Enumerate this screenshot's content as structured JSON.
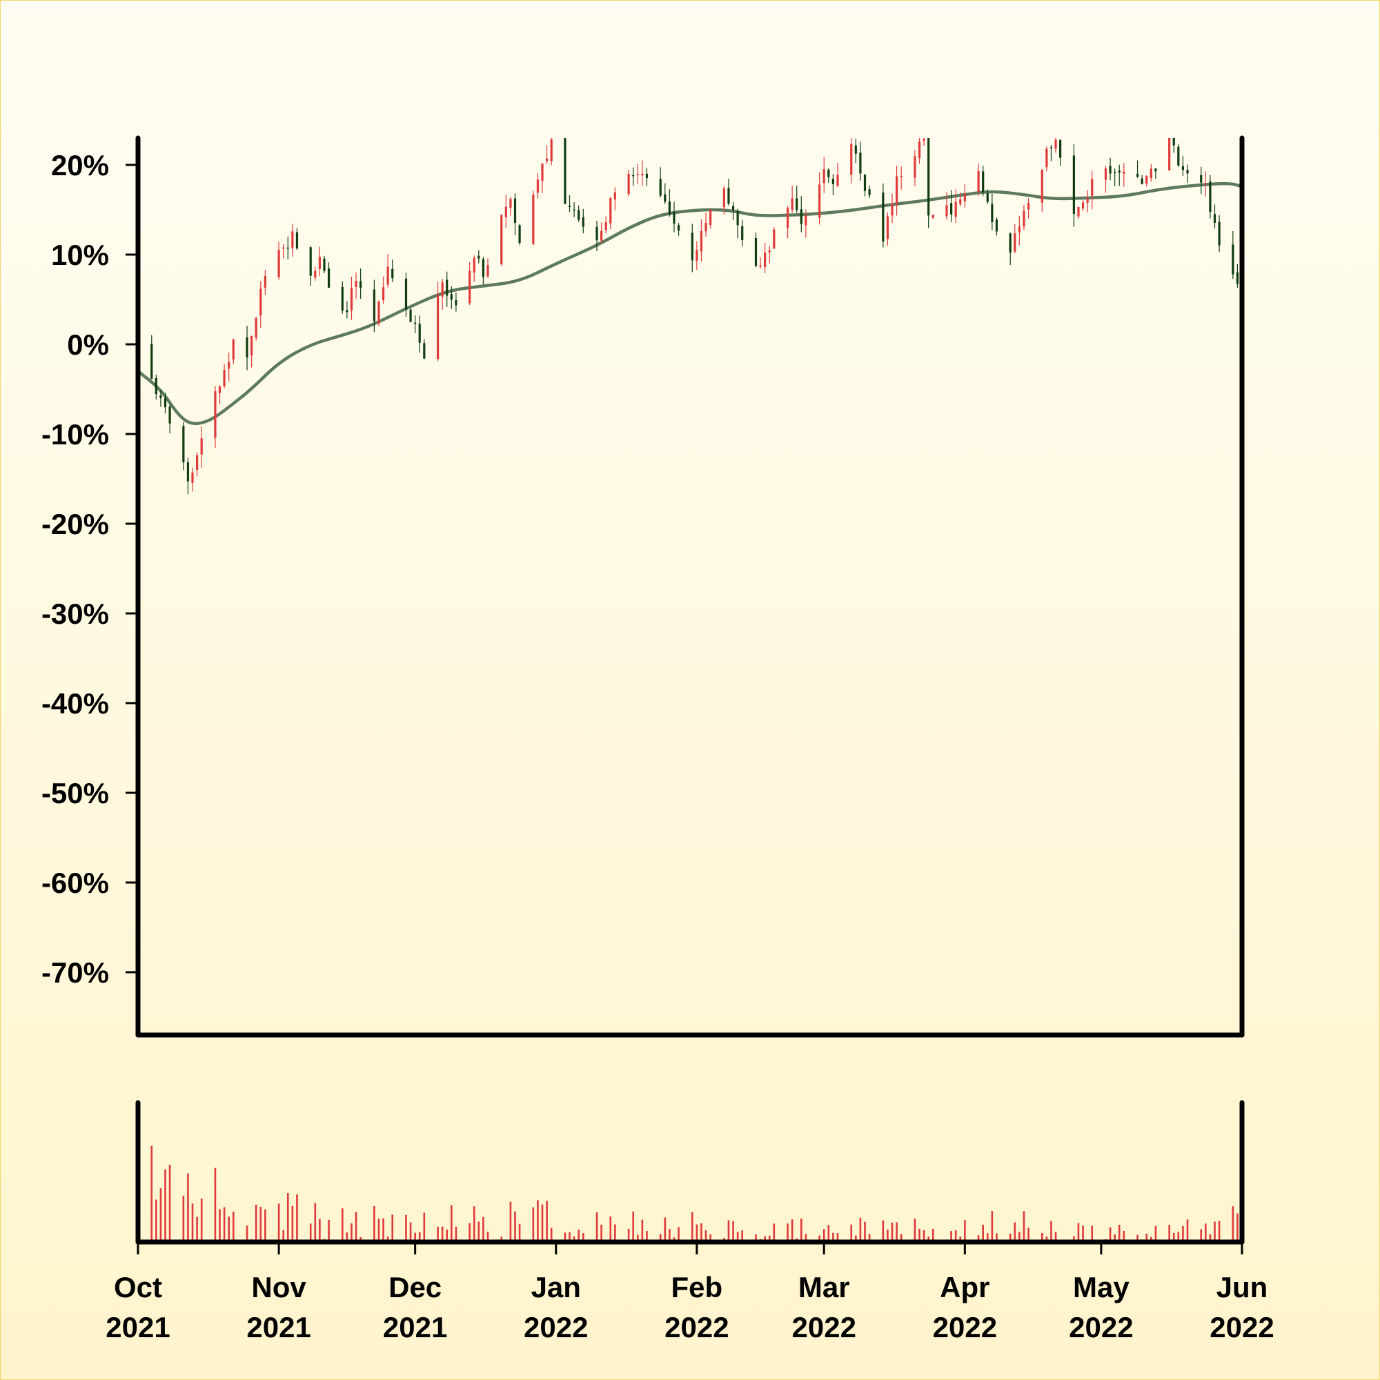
{
  "chart_data": [
    {
      "type": "candlestick",
      "title": "",
      "xlabel": "",
      "ylabel": "",
      "y_unit": "%",
      "ylim": [
        -77,
        23
      ],
      "yticks": [
        {
          "value": 20,
          "label": "20%"
        },
        {
          "value": 10,
          "label": "10%"
        },
        {
          "value": 0,
          "label": "0%"
        },
        {
          "value": -10,
          "label": "-10%"
        },
        {
          "value": -20,
          "label": "-20%"
        },
        {
          "value": -30,
          "label": "-30%"
        },
        {
          "value": -40,
          "label": "-40%"
        },
        {
          "value": -50,
          "label": "-50%"
        },
        {
          "value": -60,
          "label": "-60%"
        },
        {
          "value": -70,
          "label": "-70%"
        }
      ],
      "x_range": [
        "2021-10-01",
        "2022-06-01"
      ],
      "xticks": [
        {
          "date": "2021-10-01",
          "month": "Oct",
          "year": "2021"
        },
        {
          "date": "2021-11-01",
          "month": "Nov",
          "year": "2021"
        },
        {
          "date": "2021-12-01",
          "month": "Dec",
          "year": "2021"
        },
        {
          "date": "2022-01-01",
          "month": "Jan",
          "year": "2022"
        },
        {
          "date": "2022-02-01",
          "month": "Feb",
          "year": "2022"
        },
        {
          "date": "2022-03-01",
          "month": "Mar",
          "year": "2022"
        },
        {
          "date": "2022-04-01",
          "month": "Apr",
          "year": "2022"
        },
        {
          "date": "2022-05-01",
          "month": "May",
          "year": "2022"
        },
        {
          "date": "2022-06-01",
          "month": "Jun",
          "year": "2022"
        }
      ],
      "grid": false,
      "legend": "none",
      "colors": {
        "up": "#e03a3a",
        "down": "#0f3d0f",
        "moving_average": "#5d7a5d",
        "volume": "#e03a3a",
        "axis": "#000000"
      },
      "close_path": [
        [
          "2021-10-01",
          0
        ],
        [
          "2021-10-04",
          -4
        ],
        [
          "2021-10-06",
          -6
        ],
        [
          "2021-10-08",
          -9
        ],
        [
          "2021-10-11",
          -13
        ],
        [
          "2021-10-12",
          -16
        ],
        [
          "2021-10-14",
          -12
        ],
        [
          "2021-10-19",
          -4
        ],
        [
          "2021-10-22",
          0
        ],
        [
          "2021-10-25",
          -1
        ],
        [
          "2021-10-28",
          6
        ],
        [
          "2021-11-01",
          10
        ],
        [
          "2021-11-04",
          12
        ],
        [
          "2021-11-08",
          7
        ],
        [
          "2021-11-10",
          10
        ],
        [
          "2021-11-12",
          6
        ],
        [
          "2021-11-15",
          3
        ],
        [
          "2021-11-18",
          7
        ],
        [
          "2021-11-22",
          2
        ],
        [
          "2021-11-25",
          8
        ],
        [
          "2021-11-29",
          4
        ],
        [
          "2021-12-01",
          2
        ],
        [
          "2021-12-03",
          -1
        ],
        [
          "2021-12-07",
          7
        ],
        [
          "2021-12-10",
          4
        ],
        [
          "2021-12-14",
          10
        ],
        [
          "2021-12-16",
          8
        ],
        [
          "2021-12-20",
          14
        ],
        [
          "2021-12-22",
          16
        ],
        [
          "2021-12-24",
          12
        ],
        [
          "2021-12-27",
          16
        ],
        [
          "2021-12-31",
          23
        ],
        [
          "2022-01-03",
          15
        ],
        [
          "2022-01-06",
          14
        ],
        [
          "2022-01-10",
          11
        ],
        [
          "2022-01-14",
          17
        ],
        [
          "2022-01-17",
          19
        ],
        [
          "2022-01-21",
          19
        ],
        [
          "2022-01-25",
          16
        ],
        [
          "2022-01-27",
          14
        ],
        [
          "2022-01-31",
          9
        ],
        [
          "2022-02-03",
          14
        ],
        [
          "2022-02-07",
          18
        ],
        [
          "2022-02-10",
          13
        ],
        [
          "2022-02-14",
          8
        ],
        [
          "2022-02-17",
          11
        ],
        [
          "2022-02-22",
          16
        ],
        [
          "2022-02-24",
          13
        ],
        [
          "2022-03-01",
          20
        ],
        [
          "2022-03-03",
          18
        ],
        [
          "2022-03-07",
          23
        ],
        [
          "2022-03-09",
          19
        ],
        [
          "2022-03-14",
          12
        ],
        [
          "2022-03-17",
          18
        ],
        [
          "2022-03-21",
          21
        ],
        [
          "2022-03-23",
          23
        ],
        [
          "2022-03-24",
          15
        ],
        [
          "2022-03-28",
          15
        ],
        [
          "2022-04-01",
          16
        ],
        [
          "2022-04-04",
          19
        ],
        [
          "2022-04-07",
          14
        ],
        [
          "2022-04-11",
          11
        ],
        [
          "2022-04-14",
          15
        ],
        [
          "2022-04-19",
          21
        ],
        [
          "2022-04-21",
          23
        ],
        [
          "2022-04-25",
          14
        ],
        [
          "2022-04-28",
          17
        ],
        [
          "2022-05-02",
          20
        ],
        [
          "2022-05-06",
          19
        ],
        [
          "2022-05-10",
          18
        ],
        [
          "2022-05-13",
          20
        ],
        [
          "2022-05-16",
          23
        ],
        [
          "2022-05-19",
          19
        ],
        [
          "2022-05-24",
          18
        ],
        [
          "2022-05-26",
          13
        ],
        [
          "2022-05-31",
          6
        ]
      ],
      "moving_average": [
        [
          "2021-10-01",
          -3
        ],
        [
          "2021-10-06",
          -5
        ],
        [
          "2021-10-10",
          -8
        ],
        [
          "2021-10-13",
          -9
        ],
        [
          "2021-10-17",
          -8.5
        ],
        [
          "2021-10-21",
          -7
        ],
        [
          "2021-10-26",
          -5
        ],
        [
          "2021-11-01",
          -2
        ],
        [
          "2021-11-08",
          0
        ],
        [
          "2021-11-15",
          1
        ],
        [
          "2021-11-21",
          2
        ],
        [
          "2021-11-29",
          4
        ],
        [
          "2021-12-08",
          6
        ],
        [
          "2021-12-16",
          6.5
        ],
        [
          "2021-12-24",
          7
        ],
        [
          "2022-01-01",
          9
        ],
        [
          "2022-01-10",
          11
        ],
        [
          "2022-01-17",
          13
        ],
        [
          "2022-01-24",
          14.5
        ],
        [
          "2022-02-01",
          15
        ],
        [
          "2022-02-08",
          15
        ],
        [
          "2022-02-14",
          14.3
        ],
        [
          "2022-02-22",
          14.4
        ],
        [
          "2022-03-01",
          14.6
        ],
        [
          "2022-03-08",
          15
        ],
        [
          "2022-03-16",
          15.6
        ],
        [
          "2022-03-23",
          16
        ],
        [
          "2022-04-01",
          16.7
        ],
        [
          "2022-04-07",
          17.1
        ],
        [
          "2022-04-14",
          16.7
        ],
        [
          "2022-04-20",
          16.2
        ],
        [
          "2022-04-28",
          16.3
        ],
        [
          "2022-05-06",
          16.5
        ],
        [
          "2022-05-14",
          17.3
        ],
        [
          "2022-05-21",
          17.7
        ],
        [
          "2022-05-29",
          18
        ],
        [
          "2022-06-01",
          17.6
        ]
      ]
    },
    {
      "type": "bar",
      "title": "",
      "xlabel": "",
      "ylabel": "volume",
      "x_range": [
        "2021-10-01",
        "2022-06-01"
      ],
      "segments": [
        [
          "2021-10-01",
          18
        ],
        [
          "2021-10-12",
          14
        ],
        [
          "2021-10-19",
          10
        ],
        [
          "2021-11-01",
          8
        ],
        [
          "2021-11-15",
          6
        ],
        [
          "2021-12-01",
          6
        ],
        [
          "2021-12-15",
          7
        ],
        [
          "2022-01-01",
          6
        ],
        [
          "2022-01-15",
          5
        ],
        [
          "2022-02-01",
          5
        ],
        [
          "2022-02-15",
          4
        ],
        [
          "2022-03-01",
          4
        ],
        [
          "2022-03-15",
          4
        ],
        [
          "2022-04-01",
          5
        ],
        [
          "2022-04-15",
          4
        ],
        [
          "2022-05-01",
          3
        ],
        [
          "2022-05-20",
          4
        ],
        [
          "2022-05-26",
          6
        ]
      ]
    }
  ]
}
